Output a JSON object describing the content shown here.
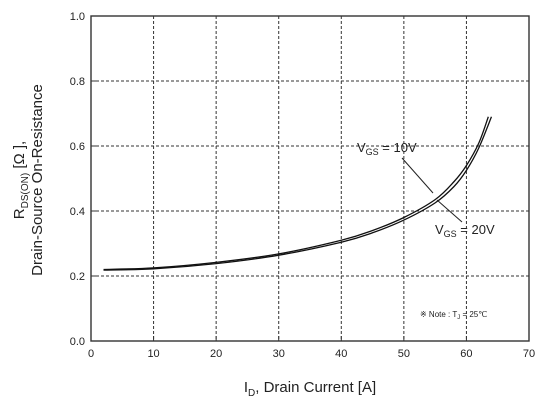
{
  "chart_data": {
    "type": "line",
    "xlabel": {
      "main": "I",
      "sub": "D",
      "rest": ", Drain Current [A]"
    },
    "ylabel": {
      "line1_main": "R",
      "line1_sub": "DS(ON)",
      "line1_rest": " [Ω ],",
      "line2": "Drain-Source On-Resistance"
    },
    "xlim": [
      0,
      70
    ],
    "ylim": [
      0.0,
      1.0
    ],
    "xticks": [
      0,
      10,
      20,
      30,
      40,
      50,
      60,
      70
    ],
    "yticks": [
      0.0,
      0.2,
      0.4,
      0.6,
      0.8,
      1.0
    ],
    "xtick_labels": [
      "0",
      "10",
      "20",
      "30",
      "40",
      "50",
      "60",
      "70"
    ],
    "ytick_labels": [
      "0.0",
      "0.2",
      "0.4",
      "0.6",
      "0.8",
      "1.0"
    ],
    "grid": true,
    "series": [
      {
        "name": "VGS = 10V",
        "x": [
          2,
          10,
          20,
          30,
          40,
          45,
          50,
          55,
          58,
          60,
          62,
          63.5
        ],
        "y": [
          0.22,
          0.225,
          0.242,
          0.268,
          0.31,
          0.34,
          0.38,
          0.435,
          0.49,
          0.54,
          0.61,
          0.69
        ]
      },
      {
        "name": "VGS = 20V",
        "x": [
          2,
          10,
          20,
          30,
          40,
          45,
          50,
          55,
          58,
          60,
          62,
          64
        ],
        "y": [
          0.218,
          0.222,
          0.238,
          0.264,
          0.304,
          0.333,
          0.372,
          0.425,
          0.475,
          0.525,
          0.595,
          0.69
        ]
      }
    ],
    "annotations": [
      {
        "main": "V",
        "sub": "GS",
        "rest": " = 10V"
      },
      {
        "main": "V",
        "sub": "GS",
        "rest": " = 20V"
      }
    ],
    "note": {
      "prefix": "※ Note : T",
      "sub": "J",
      "rest": " = 25℃"
    }
  }
}
